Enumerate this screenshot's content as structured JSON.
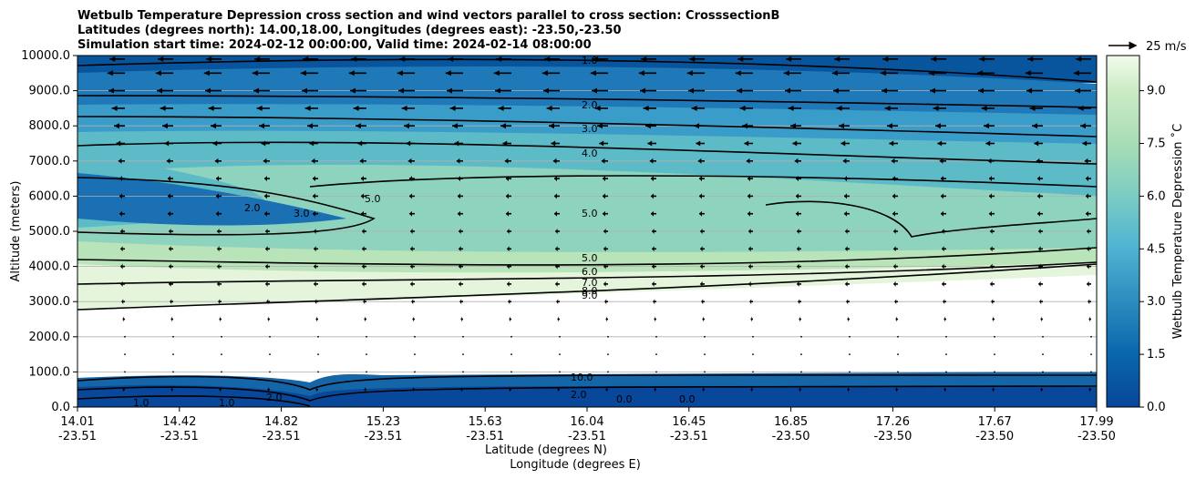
{
  "chart_data": {
    "type": "contour",
    "title_lines": [
      "Wetbulb Temperature Depression cross section and wind vectors parallel to cross section: CrosssectionB",
      "Latitudes (degrees north): 14.00,18.00, Longitudes (degrees east): -23.50,-23.50",
      "Simulation start time: 2024-02-12 00:00:00, Valid time: 2024-02-14 08:00:00"
    ],
    "ylabel": "Altitude (meters)",
    "xlabel_lat": "Latitude (degrees N)",
    "xlabel_lon": "Longitude (degrees E)",
    "ylim": [
      0,
      10000
    ],
    "yticks": [
      "0.0",
      "1000.0",
      "2000.0",
      "3000.0",
      "4000.0",
      "5000.0",
      "6000.0",
      "7000.0",
      "8000.0",
      "9000.0",
      "10000.0"
    ],
    "xticks_lat": [
      "14.01",
      "14.42",
      "14.82",
      "15.23",
      "15.63",
      "16.04",
      "16.45",
      "16.85",
      "17.26",
      "17.67",
      "17.99"
    ],
    "xticks_lon": [
      "-23.51",
      "-23.51",
      "-23.51",
      "-23.51",
      "-23.51",
      "-23.51",
      "-23.51",
      "-23.50",
      "-23.50",
      "-23.50",
      "-23.50"
    ],
    "colorbar": {
      "label": "Wetbulb Temperature Depression ˚C",
      "range": [
        0,
        10
      ],
      "ticks": [
        "0.0",
        "1.5",
        "3.0",
        "4.5",
        "6.0",
        "7.5",
        "9.0"
      ],
      "tick_values": [
        0,
        1.5,
        3.0,
        4.5,
        6.0,
        7.5,
        9.0
      ]
    },
    "contour_labels": [
      "1.0",
      "2.0",
      "3.0",
      "4.0",
      "5.0",
      "5.0",
      "5.0",
      "6.0",
      "7.0",
      "8.0",
      "9.0",
      "10.0",
      "2.0",
      "3.0",
      "0.0",
      "0.0",
      "1.0",
      "2.0",
      "2.0",
      "1.0"
    ],
    "wind_reference": "25 m/s",
    "wind_vectors_u_ms": [
      {
        "altitude": 9900,
        "u": -14
      },
      {
        "altitude": 9500,
        "u": -16
      },
      {
        "altitude": 9000,
        "u": -15
      },
      {
        "altitude": 8500,
        "u": -12
      },
      {
        "altitude": 8000,
        "u": -10
      },
      {
        "altitude": 7500,
        "u": -8
      },
      {
        "altitude": 7000,
        "u": -6
      },
      {
        "altitude": 6500,
        "u": -5
      },
      {
        "altitude": 6000,
        "u": -5
      },
      {
        "altitude": 5500,
        "u": -5
      },
      {
        "altitude": 5000,
        "u": -4
      },
      {
        "altitude": 4500,
        "u": -4
      },
      {
        "altitude": 4000,
        "u": -4
      },
      {
        "altitude": 3500,
        "u": -4
      },
      {
        "altitude": 3000,
        "u": -3
      },
      {
        "altitude": 2500,
        "u": -2
      },
      {
        "altitude": 2000,
        "u": -1
      },
      {
        "altitude": 1500,
        "u": -1
      },
      {
        "altitude": 1000,
        "u": -1
      },
      {
        "altitude": 500,
        "u": -2
      }
    ]
  }
}
